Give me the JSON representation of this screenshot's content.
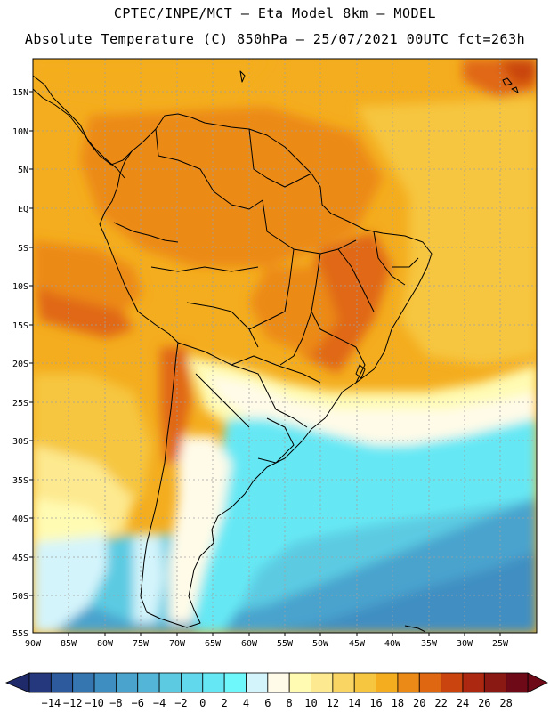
{
  "header": {
    "line1": "CPTEC/INPE/MCT –  Eta Model 8km – MODEL",
    "line2": "Absolute Temperature (C) 850hPa – 25/07/2021 00UTC fct=263h"
  },
  "axes": {
    "lat_labels": [
      "15N",
      "10N",
      "5N",
      "EQ",
      "5S",
      "10S",
      "15S",
      "20S",
      "25S",
      "30S",
      "35S",
      "40S",
      "45S",
      "50S",
      "55S"
    ],
    "lon_labels": [
      "90W",
      "85W",
      "80W",
      "75W",
      "70W",
      "65W",
      "60W",
      "55W",
      "50W",
      "45W",
      "40W",
      "35W",
      "30W",
      "25W"
    ]
  },
  "colorbar": {
    "labels": [
      "-14",
      "-12",
      "-10",
      "-8",
      "-6",
      "-4",
      "-2",
      "0",
      "2",
      "4",
      "6",
      "8",
      "10",
      "12",
      "14",
      "16",
      "18",
      "20",
      "22",
      "24",
      "26",
      "28"
    ],
    "colors": [
      "#25387e",
      "#2c5a9c",
      "#3576b0",
      "#3f8ec2",
      "#4aa3cd",
      "#53b5d8",
      "#5ccbe2",
      "#61d8ec",
      "#66e8f4",
      "#6ff8fb",
      "#d4f4fb",
      "#fffbe8",
      "#fffbb3",
      "#fde98f",
      "#f9d664",
      "#f6c640",
      "#f4ad1e",
      "#ec8a17",
      "#e06712",
      "#c9440f",
      "#ad2810",
      "#8a1913",
      "#6e0a18"
    ],
    "under_color": "#1f2a6b",
    "over_color": "#6e0a18"
  }
}
